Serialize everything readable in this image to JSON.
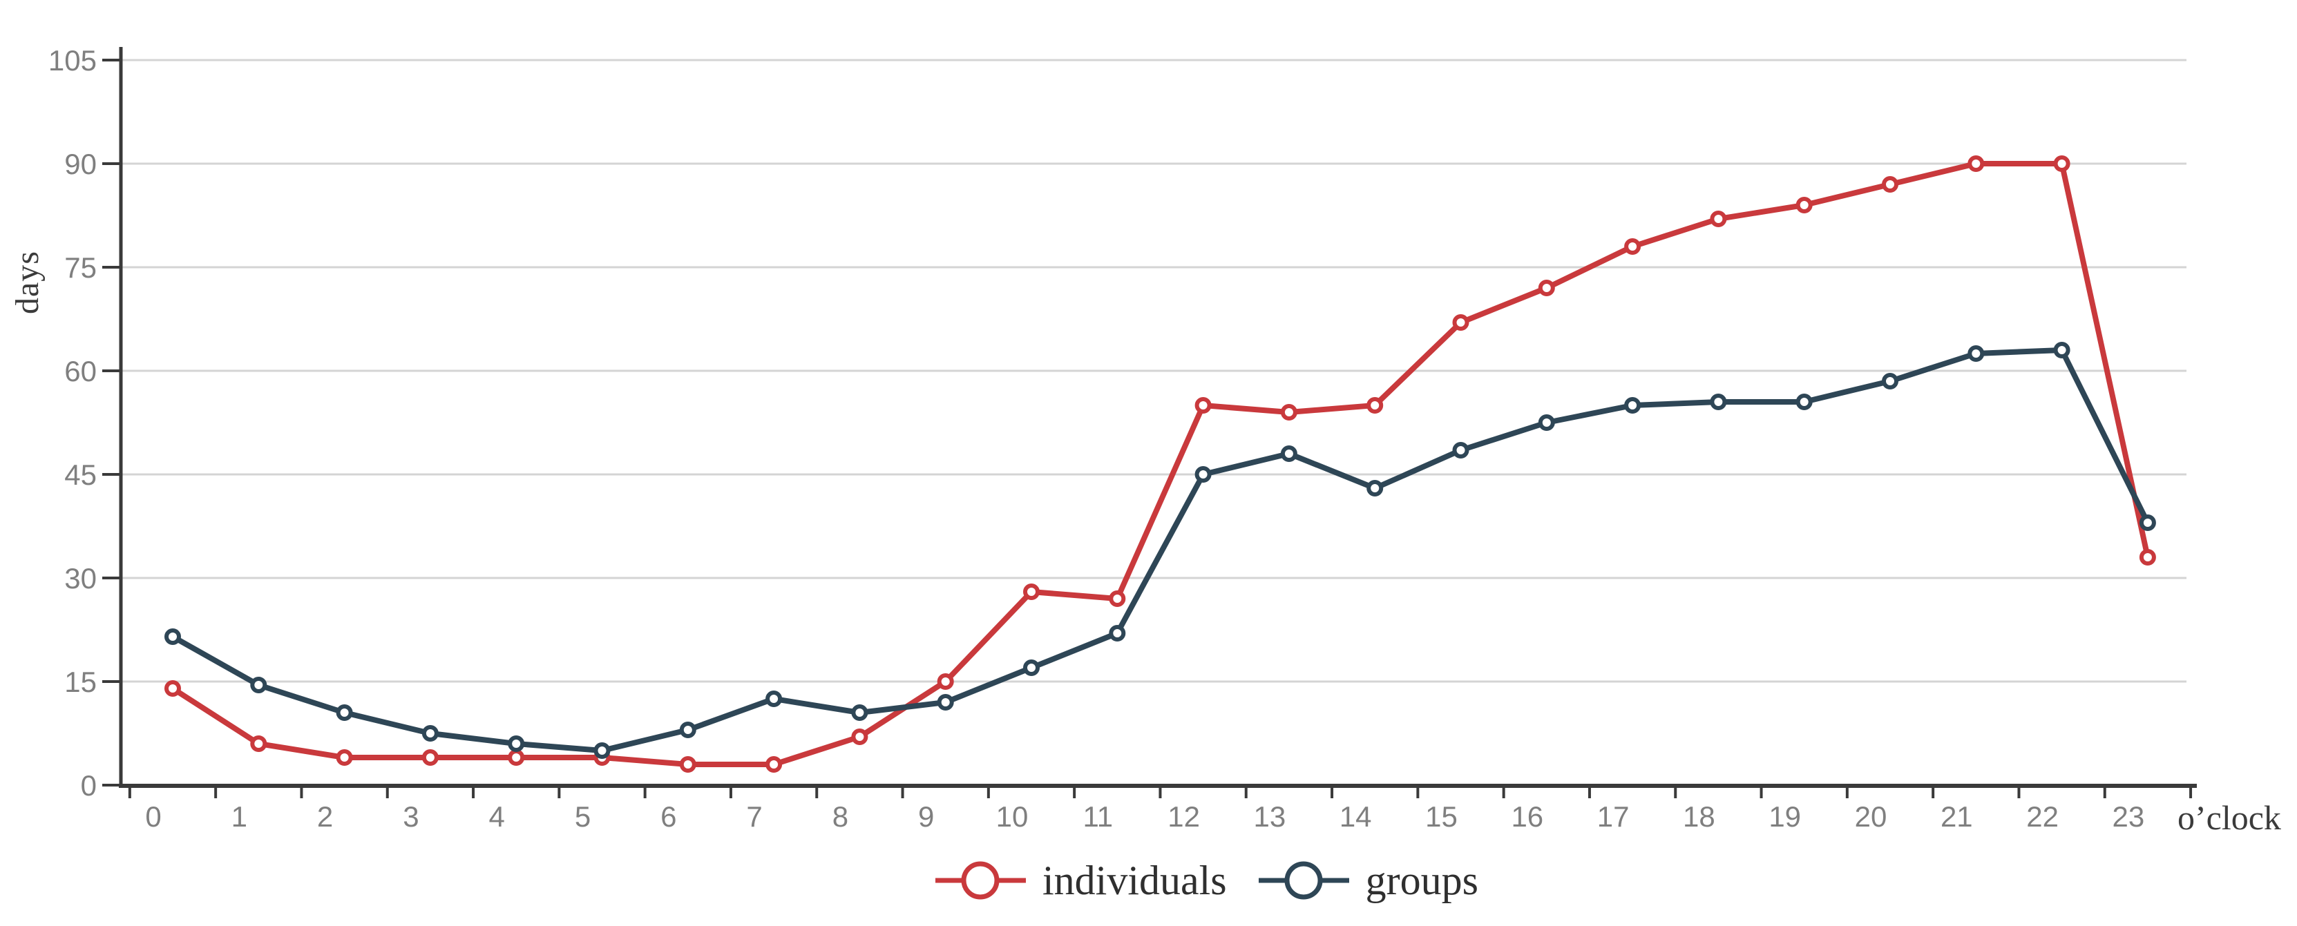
{
  "chart_data": {
    "type": "line",
    "title": "",
    "categories": [
      "0",
      "1",
      "2",
      "3",
      "4",
      "5",
      "6",
      "7",
      "8",
      "9",
      "10",
      "11",
      "12",
      "13",
      "14",
      "15",
      "16",
      "17",
      "18",
      "19",
      "20",
      "21",
      "22",
      "23"
    ],
    "series": [
      {
        "name": "individuals",
        "color": "#C9393C",
        "values": [
          14,
          6,
          4,
          4,
          4,
          4,
          3,
          3,
          7,
          15,
          28,
          27,
          55,
          54,
          55,
          67,
          72,
          78,
          82,
          84,
          87,
          90,
          90,
          33
        ]
      },
      {
        "name": "groups",
        "color": "#2E4656",
        "values": [
          21.5,
          14.5,
          10.5,
          7.5,
          6,
          5,
          8,
          12.5,
          10.5,
          12,
          17,
          22,
          45,
          48,
          43,
          48.5,
          52.5,
          55,
          55.5,
          55.5,
          58.5,
          62.5,
          63,
          38
        ]
      }
    ],
    "xlabel": "o’clock",
    "ylabel": "days",
    "ylim": [
      0,
      105
    ],
    "yticks": [
      0,
      15,
      30,
      45,
      60,
      75,
      90,
      105
    ],
    "grid": true,
    "legend_position": "bottom-center",
    "marker_style": "open-circle"
  },
  "colors": {
    "gridline": "#D4D4D4",
    "axis": "#3A3A3A",
    "tick_label": "#7F7F7F",
    "axis_title_text": "#3B3B3B",
    "legend_text": "#2F2F2F",
    "background": "#FFFFFF"
  }
}
